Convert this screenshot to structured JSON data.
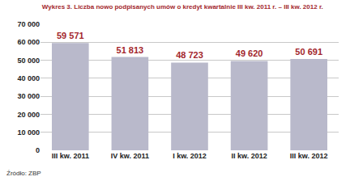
{
  "chart_data": {
    "type": "bar",
    "title": "Wykres 3. Liczba nowo podpisanych umów o kredyt kwartalnie III kw. 2011 r. – III kw. 2012 r.",
    "categories": [
      "III kw. 2011",
      "IV kw. 2011",
      "I kw. 2012",
      "II kw. 2012",
      "III kw. 2012"
    ],
    "values": [
      59571,
      51813,
      48723,
      49620,
      50691
    ],
    "value_labels": [
      "59 571",
      "51 813",
      "48 723",
      "49 620",
      "50 691"
    ],
    "data_labels": true,
    "color": "#b9b9cb",
    "ylim": [
      0,
      70000
    ],
    "yticks": [
      0,
      {
        "value": 10000,
        "label": "10 000"
      },
      {
        "value": 20000,
        "label": "20 000"
      },
      {
        "value": 30000,
        "label": "30 000"
      },
      {
        "value": 40000,
        "label": "40 000"
      },
      {
        "value": 50000,
        "label": "50 000"
      },
      {
        "value": 60000,
        "label": "60 000"
      },
      {
        "value": 70000,
        "label": "70 000"
      }
    ],
    "grid": true,
    "annotations": [
      "Źródło: ZBP"
    ]
  }
}
